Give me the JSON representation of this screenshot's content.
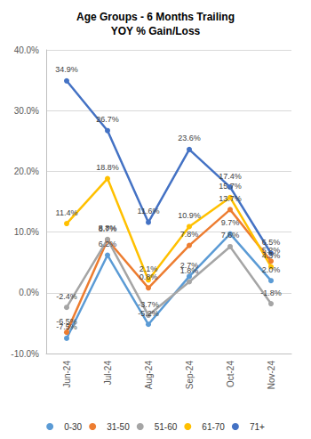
{
  "chart_data": {
    "type": "line",
    "title": "Age Groups - 6 Months Trailing",
    "subtitle": "YOY % Gain/Loss",
    "categories": [
      "Jun-24",
      "Jul-24",
      "Aug-24",
      "Sep-24",
      "Oct-24",
      "Nov-24"
    ],
    "series": [
      {
        "name": "0-30",
        "color": "#5B9BD5",
        "marker": "circle",
        "values": [
          -7.5,
          6.2,
          -5.2,
          2.7,
          9.7,
          2.0
        ],
        "value_labels": [
          "-7.5%",
          "6.2%",
          "-5.2%",
          "2.7%",
          "9.7%",
          "2.0%"
        ]
      },
      {
        "name": "31-50",
        "color": "#ED7D31",
        "marker": "circle",
        "values": [
          -6.5,
          8.7,
          0.8,
          7.8,
          13.7,
          5.2
        ],
        "value_labels": [
          "-6.5%",
          "8.7%",
          "0.8%",
          "7.8%",
          "13.7%",
          "5.2%"
        ]
      },
      {
        "name": "51-60",
        "color": "#A5A5A5",
        "marker": "circle",
        "values": [
          -2.4,
          8.8,
          -3.7,
          1.8,
          7.6,
          -1.8
        ],
        "value_labels": [
          "-2.4%",
          "8.8%",
          "-3.7%",
          "1.8%",
          "7.6%",
          "-1.8%"
        ]
      },
      {
        "name": "61-70",
        "color": "#FFC000",
        "marker": "circle",
        "values": [
          11.4,
          18.8,
          2.1,
          10.9,
          15.7,
          4.3
        ],
        "value_labels": [
          "11.4%",
          "18.8%",
          "2.1%",
          "10.9%",
          "15.7%",
          "4.3%"
        ]
      },
      {
        "name": "71+",
        "color": "#4472C4",
        "marker": "circle",
        "values": [
          34.9,
          26.7,
          11.6,
          23.6,
          17.4,
          6.5
        ],
        "value_labels": [
          "34.9%",
          "26.7%",
          "11.6%",
          "23.6%",
          "17.4%",
          "6.5%"
        ]
      }
    ],
    "ylim": [
      -10,
      40
    ],
    "yticks": [
      {
        "value": -10,
        "label": "-10.0%"
      },
      {
        "value": 0,
        "label": "0.0%"
      },
      {
        "value": 10,
        "label": "10.0%"
      },
      {
        "value": 20,
        "label": "20.0%"
      },
      {
        "value": 30,
        "label": "30.0%"
      },
      {
        "value": 40,
        "label": "40.0%"
      }
    ],
    "grid": true,
    "legend": "bottom",
    "data_labels": true
  }
}
